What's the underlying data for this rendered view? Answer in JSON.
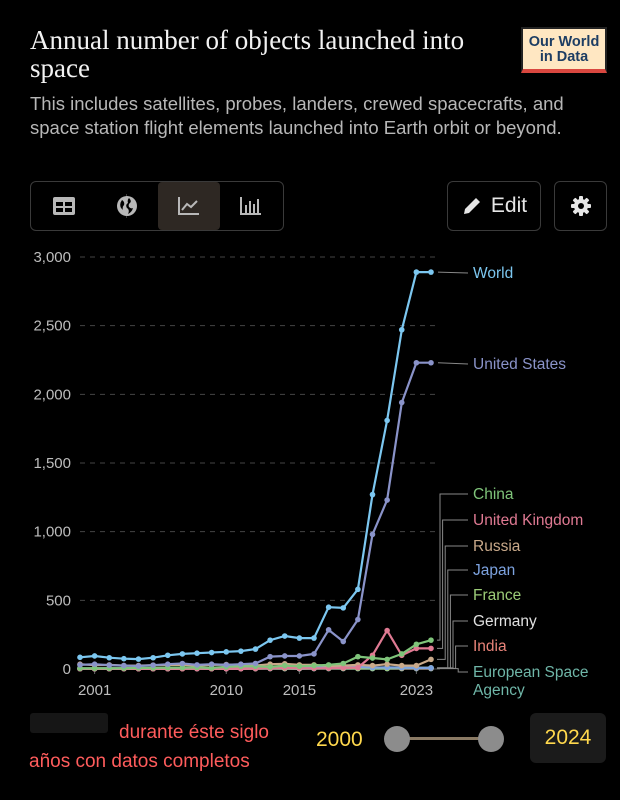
{
  "header": {
    "title": "Annual number of objects launched into space",
    "subtitle": "This includes satellites, probes, landers, crewed spacecrafts, and space station flight elements launched into Earth orbit or beyond.",
    "logo_line1": "Our World",
    "logo_line2": "in Data"
  },
  "toolbar": {
    "tabs": [
      {
        "icon": "table-icon",
        "label": "Table"
      },
      {
        "icon": "globe-icon",
        "label": "Map"
      },
      {
        "icon": "line-chart-icon",
        "label": "Chart"
      },
      {
        "icon": "bar-chart-icon",
        "label": "Bar chart"
      }
    ],
    "edit_label": "Edit",
    "settings_icon": "gear-icon"
  },
  "timeline": {
    "overlay_line1": "durante éste siglo",
    "overlay_line2": "años con datos completos",
    "start": "2000",
    "end": "2024"
  },
  "chart_data": {
    "type": "line",
    "x": [
      2000,
      2001,
      2002,
      2003,
      2004,
      2005,
      2006,
      2007,
      2008,
      2009,
      2010,
      2011,
      2012,
      2013,
      2014,
      2015,
      2016,
      2017,
      2018,
      2019,
      2020,
      2021,
      2022,
      2023,
      2024
    ],
    "x_ticks": [
      "2001",
      "2010",
      "2015",
      "2023"
    ],
    "y_ticks": [
      "0",
      "500",
      "1,000",
      "1,500",
      "2,000",
      "2,500",
      "3,000"
    ],
    "ylim": [
      0,
      3000
    ],
    "series": [
      {
        "name": "World",
        "color": "#7cc7f0",
        "values": [
          85,
          95,
          82,
          75,
          72,
          82,
          100,
          110,
          115,
          120,
          125,
          130,
          145,
          210,
          240,
          225,
          225,
          450,
          445,
          580,
          1270,
          1810,
          2470,
          2890,
          2890
        ]
      },
      {
        "name": "United States",
        "color": "#8a93c9",
        "values": [
          30,
          35,
          28,
          25,
          22,
          28,
          35,
          40,
          30,
          35,
          30,
          35,
          40,
          90,
          95,
          95,
          110,
          285,
          200,
          360,
          980,
          1230,
          1940,
          2230,
          2230
        ]
      },
      {
        "name": "China",
        "color": "#7fc47a",
        "values": [
          5,
          5,
          5,
          6,
          8,
          8,
          10,
          10,
          12,
          8,
          15,
          20,
          20,
          15,
          25,
          20,
          25,
          30,
          40,
          90,
          80,
          70,
          110,
          180,
          210
        ]
      },
      {
        "name": "United Kingdom",
        "color": "#e07a93",
        "values": [
          2,
          3,
          2,
          3,
          2,
          2,
          3,
          2,
          3,
          2,
          3,
          3,
          5,
          5,
          8,
          6,
          5,
          6,
          8,
          10,
          100,
          280,
          100,
          150,
          150
        ]
      },
      {
        "name": "Russia",
        "color": "#c9a98a",
        "values": [
          35,
          28,
          30,
          25,
          25,
          28,
          30,
          30,
          25,
          30,
          32,
          30,
          25,
          35,
          38,
          30,
          30,
          22,
          25,
          30,
          25,
          35,
          25,
          25,
          70
        ]
      },
      {
        "name": "Japan",
        "color": "#7da3e0",
        "values": [
          3,
          5,
          4,
          5,
          6,
          5,
          6,
          5,
          6,
          5,
          8,
          8,
          6,
          10,
          12,
          10,
          12,
          15,
          15,
          15,
          10,
          12,
          10,
          8,
          8
        ]
      },
      {
        "name": "France",
        "color": "#9ccc78",
        "values": [
          5,
          5,
          6,
          5,
          5,
          6,
          5,
          5,
          5,
          6,
          6,
          6,
          5,
          5,
          5,
          6,
          5,
          5,
          6,
          5,
          5,
          5,
          8,
          8,
          8
        ]
      },
      {
        "name": "Germany",
        "color": "#e0e0e0",
        "values": [
          2,
          2,
          2,
          3,
          3,
          2,
          3,
          4,
          3,
          3,
          3,
          3,
          4,
          4,
          4,
          3,
          4,
          5,
          5,
          5,
          5,
          5,
          8,
          8,
          8
        ]
      },
      {
        "name": "India",
        "color": "#e98379",
        "values": [
          2,
          2,
          2,
          2,
          2,
          2,
          2,
          3,
          5,
          3,
          3,
          3,
          3,
          5,
          5,
          5,
          8,
          5,
          5,
          5,
          5,
          5,
          5,
          5,
          5
        ]
      },
      {
        "name": "European Space Agency",
        "color": "#6fb6a8",
        "values": [
          3,
          3,
          3,
          3,
          3,
          3,
          3,
          3,
          3,
          3,
          3,
          3,
          3,
          3,
          3,
          3,
          3,
          3,
          3,
          3,
          3,
          3,
          3,
          3,
          3
        ]
      }
    ]
  }
}
